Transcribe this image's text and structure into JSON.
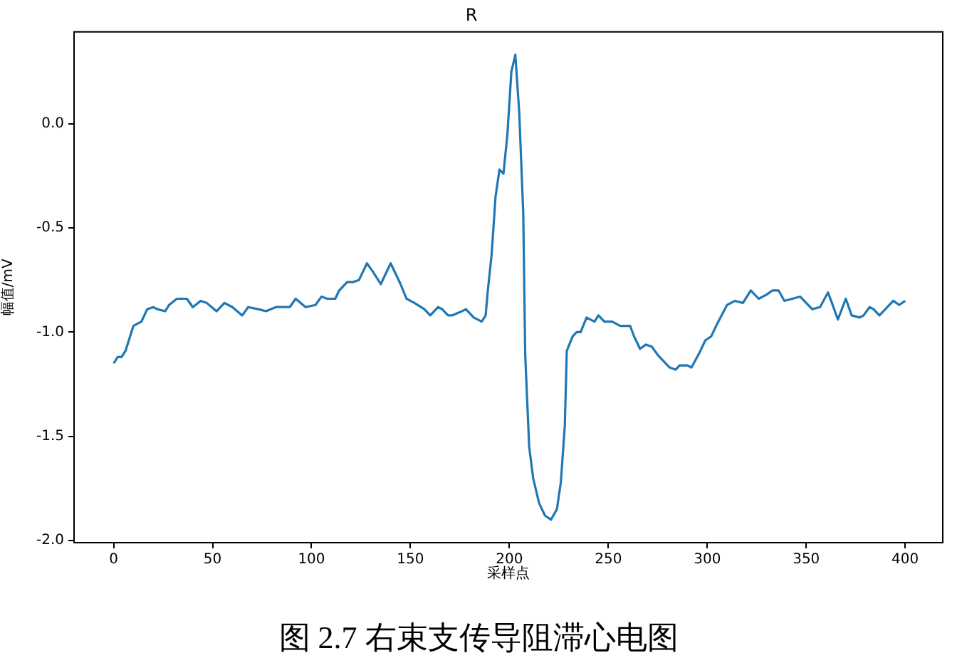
{
  "chart_data": {
    "type": "line",
    "title": "R",
    "xlabel": "采样点",
    "ylabel": "幅值/mV",
    "annotations": [
      "图 2.7 右束支传导阻滞心电图"
    ],
    "xlim": [
      -20,
      419
    ],
    "xticks": [
      0,
      50,
      100,
      150,
      200,
      250,
      300,
      350,
      400
    ],
    "ylim": [
      -2.01,
      0.44
    ],
    "yticks": [
      {
        "value": -2,
        "label": "-2.0"
      },
      {
        "value": -1.5,
        "label": "-1.5"
      },
      {
        "value": -1,
        "label": "-1.0"
      },
      {
        "value": -0.5,
        "label": "-0.5"
      },
      {
        "value": 0,
        "label": "0.0"
      }
    ],
    "legend": false,
    "marker": "none",
    "line_style": "solid",
    "series": [
      {
        "color": "#1f77b4",
        "x": [
          0,
          2,
          4,
          6,
          10,
          14,
          17,
          20,
          22,
          26,
          28,
          32,
          37,
          40,
          44,
          47,
          52,
          56,
          60,
          65,
          68,
          73,
          77,
          82,
          89,
          92,
          97,
          102,
          105,
          108,
          112,
          114,
          118,
          121,
          124,
          128,
          131,
          135,
          140,
          145,
          148,
          152,
          157,
          160,
          164,
          166,
          169,
          171,
          176,
          178,
          182,
          186,
          188,
          189,
          191,
          193,
          195,
          197,
          199,
          201,
          203,
          205,
          207,
          208,
          210,
          212,
          215,
          218,
          221,
          224,
          226,
          228,
          229,
          232,
          234,
          236,
          239,
          243,
          245,
          248,
          252,
          256,
          261,
          263,
          266,
          269,
          272,
          275,
          278,
          281,
          284,
          286,
          290,
          292,
          296,
          299,
          302,
          305,
          310,
          314,
          318,
          320,
          322,
          326,
          330,
          333,
          336,
          339,
          343,
          347,
          350,
          353,
          357,
          361,
          363,
          366,
          370,
          373,
          377,
          379,
          382,
          384,
          387,
          389,
          391,
          394,
          397,
          400
        ],
        "values": [
          -1.15,
          -1.12,
          -1.12,
          -1.09,
          -0.97,
          -0.95,
          -0.89,
          -0.88,
          -0.89,
          -0.9,
          -0.87,
          -0.84,
          -0.84,
          -0.88,
          -0.85,
          -0.86,
          -0.9,
          -0.86,
          -0.88,
          -0.92,
          -0.88,
          -0.89,
          -0.9,
          -0.88,
          -0.88,
          -0.84,
          -0.88,
          -0.87,
          -0.83,
          -0.84,
          -0.84,
          -0.8,
          -0.76,
          -0.76,
          -0.75,
          -0.67,
          -0.71,
          -0.77,
          -0.67,
          -0.77,
          -0.84,
          -0.86,
          -0.89,
          -0.92,
          -0.88,
          -0.89,
          -0.92,
          -0.92,
          -0.9,
          -0.89,
          -0.93,
          -0.95,
          -0.92,
          -0.81,
          -0.63,
          -0.35,
          -0.22,
          -0.24,
          -0.05,
          0.25,
          0.33,
          0.05,
          -0.43,
          -1.11,
          -1.55,
          -1.7,
          -1.82,
          -1.88,
          -1.9,
          -1.85,
          -1.72,
          -1.45,
          -1.09,
          -1.02,
          -1,
          -1,
          -0.93,
          -0.95,
          -0.92,
          -0.95,
          -0.95,
          -0.97,
          -0.97,
          -1.02,
          -1.08,
          -1.06,
          -1.07,
          -1.11,
          -1.14,
          -1.17,
          -1.18,
          -1.16,
          -1.16,
          -1.17,
          -1.1,
          -1.04,
          -1.02,
          -0.96,
          -0.87,
          -0.85,
          -0.86,
          -0.83,
          -0.8,
          -0.84,
          -0.82,
          -0.8,
          -0.8,
          -0.85,
          -0.84,
          -0.83,
          -0.86,
          -0.89,
          -0.88,
          -0.81,
          -0.86,
          -0.94,
          -0.84,
          -0.92,
          -0.93,
          -0.92,
          -0.88,
          -0.89,
          -0.92,
          -0.9,
          -0.88,
          -0.85,
          -0.87,
          -0.85
        ]
      }
    ]
  }
}
